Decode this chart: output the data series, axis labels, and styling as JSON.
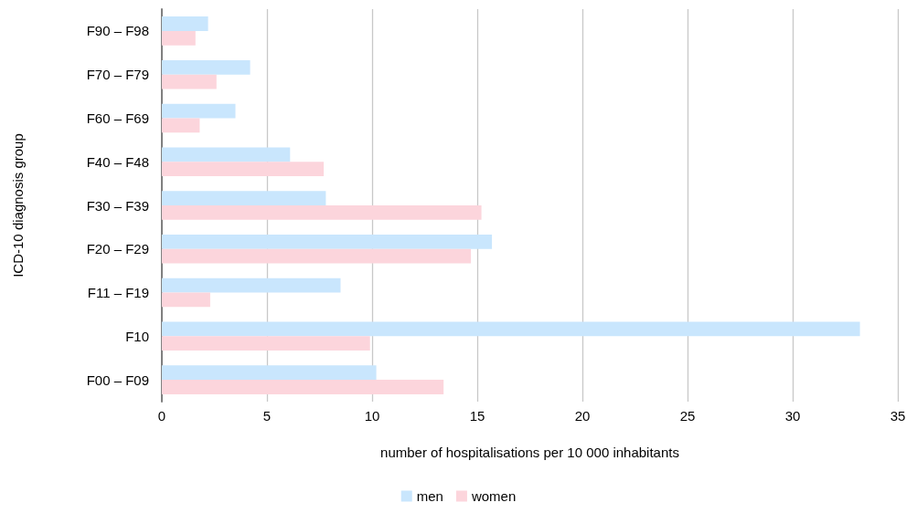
{
  "chart_data": {
    "type": "bar",
    "orientation": "horizontal",
    "xlabel": "number of hospitalisations per 10 000 inhabitants",
    "ylabel": "ICD-10 diagnosis group",
    "categories": [
      "F90 – F98",
      "F70 – F79",
      "F60 – F69",
      "F40 – F48",
      "F30 – F39",
      "F20 – F29",
      "F11 – F19",
      "F10",
      "F00 – F09"
    ],
    "series": [
      {
        "name": "men",
        "color": "#c9e6fd",
        "values": [
          2.2,
          4.2,
          3.5,
          6.1,
          7.8,
          15.7,
          8.5,
          33.2,
          10.2
        ]
      },
      {
        "name": "women",
        "color": "#fcd5dc",
        "values": [
          1.6,
          2.6,
          1.8,
          7.7,
          15.2,
          14.7,
          2.3,
          9.9,
          13.4
        ]
      }
    ],
    "xlim": [
      0,
      35
    ],
    "xticks": [
      0,
      5,
      10,
      15,
      20,
      25,
      30,
      35
    ],
    "grid": "x",
    "legend": "bottom"
  }
}
